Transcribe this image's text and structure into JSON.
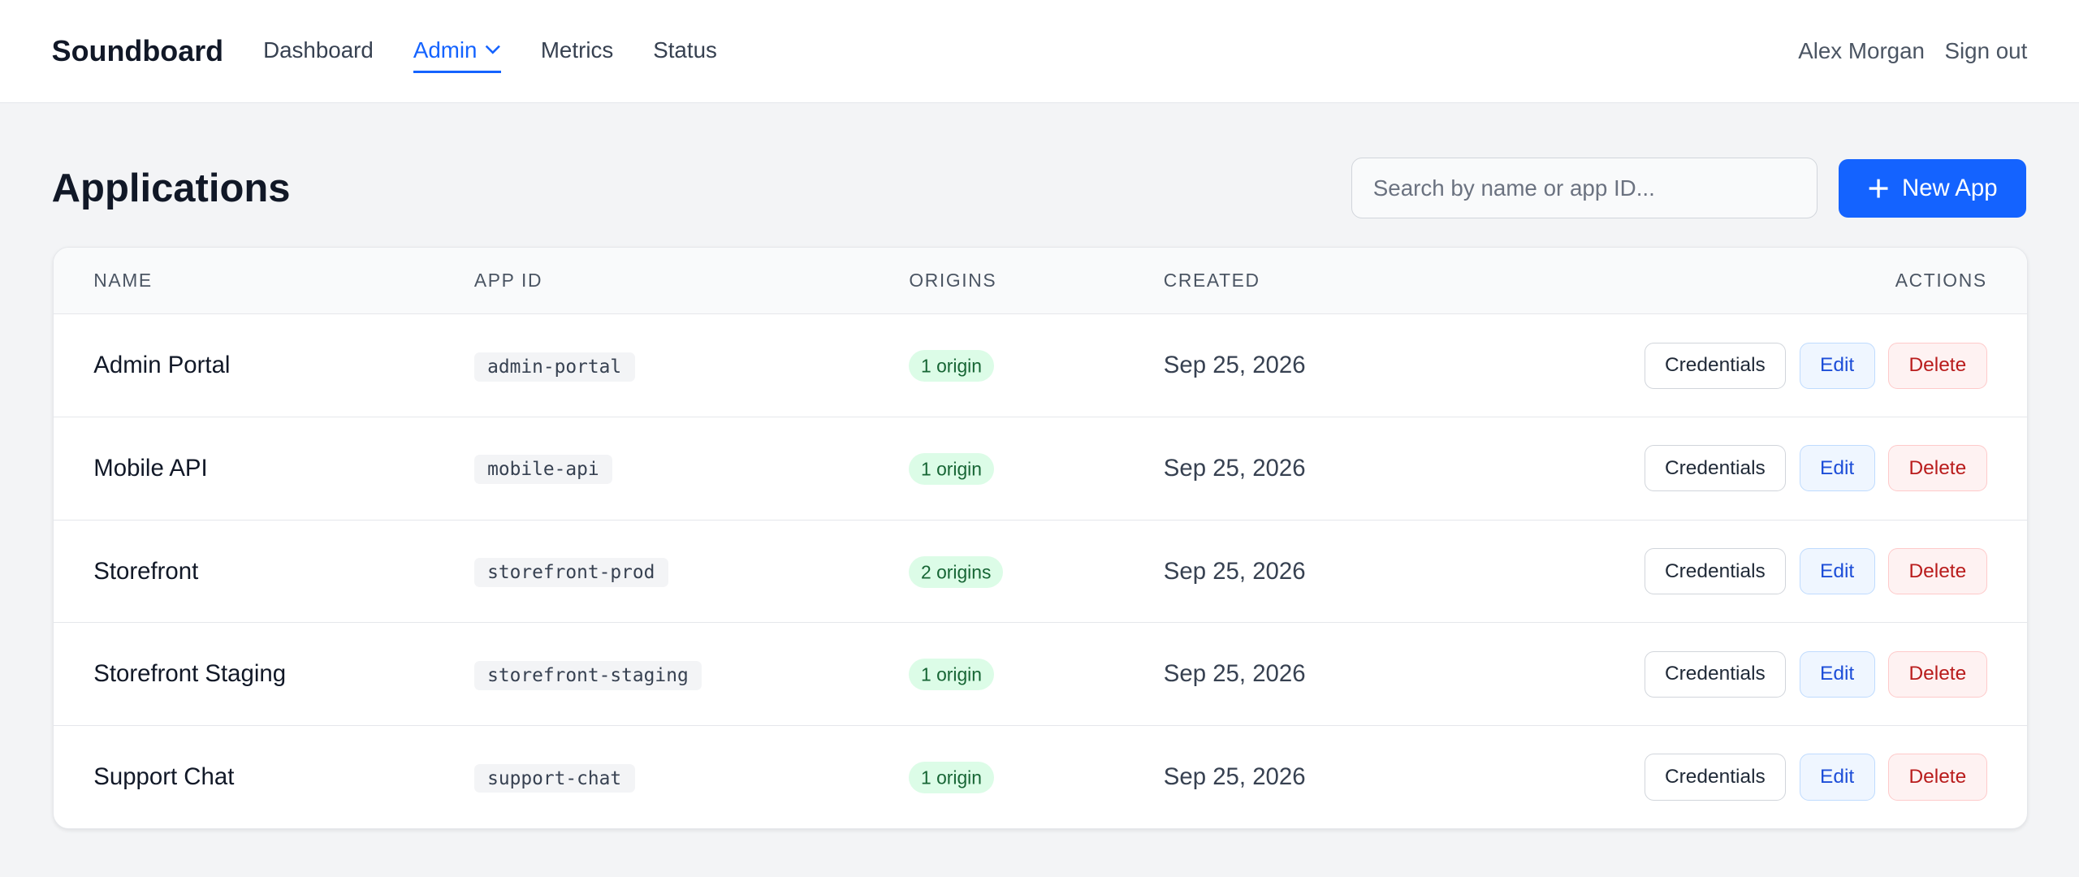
{
  "nav": {
    "brand": "Soundboard",
    "items": [
      "Dashboard",
      "Admin",
      "Metrics",
      "Status"
    ],
    "user": "Alex Morgan",
    "signout": "Sign out"
  },
  "page": {
    "title": "Applications",
    "search_placeholder": "Search by name or app ID...",
    "new_button": "New App"
  },
  "table": {
    "headers": [
      "NAME",
      "APP ID",
      "ORIGINS",
      "CREATED",
      "ACTIONS"
    ],
    "rows": [
      [
        "Admin Portal",
        "admin-portal",
        "1 origin",
        "Sep 25, 2026"
      ],
      [
        "Mobile API",
        "mobile-api",
        "1 origin",
        "Sep 25, 2026"
      ],
      [
        "Storefront",
        "storefront-prod",
        "2 origins",
        "Sep 25, 2026"
      ],
      [
        "Storefront Staging",
        "storefront-staging",
        "1 origin",
        "Sep 25, 2026"
      ],
      [
        "Support Chat",
        "support-chat",
        "1 origin",
        "Sep 25, 2026"
      ]
    ],
    "actions": [
      "Credentials",
      "Edit",
      "Delete"
    ]
  }
}
